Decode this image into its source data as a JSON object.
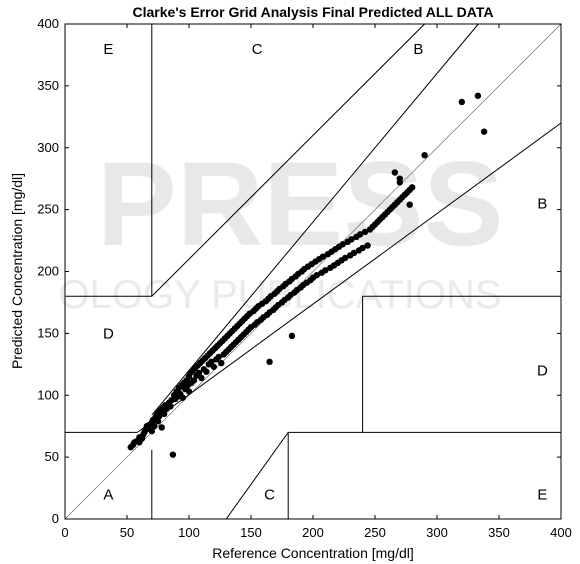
{
  "chart_data": {
    "type": "scatter",
    "title": "Clarke's Error Grid Analysis Final Predicted ALL DATA",
    "xlabel": "Reference Concentration [mg/dl]",
    "ylabel": "Predicted Concentration [mg/dl]",
    "xlim": [
      0,
      400
    ],
    "ylim": [
      0,
      400
    ],
    "xticks": [
      0,
      50,
      100,
      150,
      200,
      250,
      300,
      350,
      400
    ],
    "yticks": [
      0,
      50,
      100,
      150,
      200,
      250,
      300,
      350,
      400
    ],
    "grid": false,
    "zones": [
      {
        "label": "A",
        "x": 35,
        "y": 20
      },
      {
        "label": "B",
        "x": 285,
        "y": 380
      },
      {
        "label": "B",
        "x": 385,
        "y": 255
      },
      {
        "label": "C",
        "x": 155,
        "y": 380
      },
      {
        "label": "C",
        "x": 165,
        "y": 20
      },
      {
        "label": "D",
        "x": 35,
        "y": 150
      },
      {
        "label": "D",
        "x": 385,
        "y": 120
      },
      {
        "label": "E",
        "x": 35,
        "y": 380
      },
      {
        "label": "E",
        "x": 385,
        "y": 20
      }
    ],
    "boundaries": [
      [
        [
          0,
          0
        ],
        [
          400,
          400
        ]
      ],
      [
        [
          58.33,
          70
        ],
        [
          400,
          320
        ]
      ],
      [
        [
          70,
          84
        ],
        [
          333.33,
          400
        ]
      ],
      [
        [
          0,
          70
        ],
        [
          58.33,
          70
        ]
      ],
      [
        [
          70,
          56
        ],
        [
          70,
          0
        ]
      ],
      [
        [
          70,
          180
        ],
        [
          70,
          400
        ]
      ],
      [
        [
          0,
          180
        ],
        [
          70,
          180
        ]
      ],
      [
        [
          70,
          180
        ],
        [
          290,
          400
        ]
      ],
      [
        [
          130,
          0
        ],
        [
          180,
          70
        ]
      ],
      [
        [
          180,
          70
        ],
        [
          180,
          0
        ]
      ],
      [
        [
          180,
          70
        ],
        [
          400,
          70
        ]
      ],
      [
        [
          240,
          70
        ],
        [
          240,
          180
        ]
      ],
      [
        [
          240,
          180
        ],
        [
          400,
          180
        ]
      ]
    ],
    "series": [
      {
        "points": [
          [
            53,
            58
          ],
          [
            55,
            60
          ],
          [
            56,
            62
          ],
          [
            58,
            63
          ],
          [
            60,
            62
          ],
          [
            60,
            66
          ],
          [
            62,
            65
          ],
          [
            63,
            68
          ],
          [
            64,
            70
          ],
          [
            65,
            72
          ],
          [
            66,
            75
          ],
          [
            67,
            73
          ],
          [
            68,
            76
          ],
          [
            70,
            71
          ],
          [
            70,
            78
          ],
          [
            71,
            80
          ],
          [
            72,
            75
          ],
          [
            73,
            82
          ],
          [
            74,
            84
          ],
          [
            75,
            79
          ],
          [
            75,
            86
          ],
          [
            76,
            83
          ],
          [
            77,
            88
          ],
          [
            78,
            74
          ],
          [
            79,
            90
          ],
          [
            80,
            85
          ],
          [
            81,
            92
          ],
          [
            82,
            89
          ],
          [
            84,
            94
          ],
          [
            85,
            91
          ],
          [
            86,
            96
          ],
          [
            87,
            52
          ],
          [
            88,
            100
          ],
          [
            89,
            97
          ],
          [
            90,
            103
          ],
          [
            91,
            99
          ],
          [
            92,
            106
          ],
          [
            93,
            101
          ],
          [
            94,
            108
          ],
          [
            95,
            98
          ],
          [
            96,
            110
          ],
          [
            97,
            105
          ],
          [
            98,
            112
          ],
          [
            99,
            108
          ],
          [
            100,
            115
          ],
          [
            100,
            103
          ],
          [
            101,
            118
          ],
          [
            102,
            110
          ],
          [
            103,
            120
          ],
          [
            104,
            112
          ],
          [
            105,
            122
          ],
          [
            106,
            116
          ],
          [
            107,
            124
          ],
          [
            108,
            118
          ],
          [
            109,
            126
          ],
          [
            110,
            114
          ],
          [
            111,
            128
          ],
          [
            112,
            121
          ],
          [
            113,
            130
          ],
          [
            114,
            119
          ],
          [
            115,
            132
          ],
          [
            116,
            125
          ],
          [
            117,
            134
          ],
          [
            118,
            127
          ],
          [
            119,
            136
          ],
          [
            120,
            123
          ],
          [
            121,
            138
          ],
          [
            122,
            129
          ],
          [
            123,
            140
          ],
          [
            124,
            131
          ],
          [
            125,
            142
          ],
          [
            126,
            126
          ],
          [
            127,
            144
          ],
          [
            128,
            133
          ],
          [
            129,
            146
          ],
          [
            130,
            135
          ],
          [
            131,
            148
          ],
          [
            132,
            137
          ],
          [
            133,
            150
          ],
          [
            134,
            139
          ],
          [
            135,
            152
          ],
          [
            136,
            141
          ],
          [
            137,
            154
          ],
          [
            138,
            143
          ],
          [
            139,
            156
          ],
          [
            140,
            145
          ],
          [
            141,
            158
          ],
          [
            142,
            147
          ],
          [
            143,
            160
          ],
          [
            144,
            149
          ],
          [
            145,
            162
          ],
          [
            146,
            151
          ],
          [
            147,
            164
          ],
          [
            148,
            153
          ],
          [
            149,
            166
          ],
          [
            150,
            155
          ],
          [
            152,
            168
          ],
          [
            153,
            157
          ],
          [
            154,
            170
          ],
          [
            155,
            159
          ],
          [
            156,
            172
          ],
          [
            158,
            161
          ],
          [
            159,
            174
          ],
          [
            160,
            163
          ],
          [
            162,
            176
          ],
          [
            163,
            165
          ],
          [
            164,
            178
          ],
          [
            165,
            167
          ],
          [
            166,
            180
          ],
          [
            168,
            169
          ],
          [
            169,
            182
          ],
          [
            170,
            171
          ],
          [
            171,
            184
          ],
          [
            172,
            173
          ],
          [
            173,
            186
          ],
          [
            175,
            175
          ],
          [
            176,
            188
          ],
          [
            177,
            177
          ],
          [
            178,
            190
          ],
          [
            180,
            179
          ],
          [
            181,
            192
          ],
          [
            182,
            181
          ],
          [
            183,
            194
          ],
          [
            185,
            183
          ],
          [
            186,
            196
          ],
          [
            187,
            185
          ],
          [
            188,
            198
          ],
          [
            190,
            187
          ],
          [
            191,
            200
          ],
          [
            192,
            189
          ],
          [
            193,
            202
          ],
          [
            195,
            191
          ],
          [
            196,
            204
          ],
          [
            198,
            193
          ],
          [
            199,
            206
          ],
          [
            200,
            195
          ],
          [
            202,
            208
          ],
          [
            203,
            197
          ],
          [
            205,
            210
          ],
          [
            207,
            199
          ],
          [
            208,
            212
          ],
          [
            210,
            201
          ],
          [
            212,
            214
          ],
          [
            214,
            203
          ],
          [
            215,
            216
          ],
          [
            217,
            205
          ],
          [
            218,
            218
          ],
          [
            220,
            207
          ],
          [
            221,
            220
          ],
          [
            223,
            209
          ],
          [
            224,
            222
          ],
          [
            226,
            211
          ],
          [
            228,
            224
          ],
          [
            230,
            213
          ],
          [
            231,
            226
          ],
          [
            233,
            215
          ],
          [
            235,
            228
          ],
          [
            237,
            217
          ],
          [
            238,
            230
          ],
          [
            240,
            219
          ],
          [
            242,
            232
          ],
          [
            244,
            221
          ],
          [
            246,
            234
          ],
          [
            248,
            236
          ],
          [
            250,
            238
          ],
          [
            252,
            240
          ],
          [
            254,
            242
          ],
          [
            256,
            244
          ],
          [
            258,
            246
          ],
          [
            260,
            248
          ],
          [
            262,
            250
          ],
          [
            264,
            252
          ],
          [
            266,
            254
          ],
          [
            268,
            256
          ],
          [
            270,
            258
          ],
          [
            272,
            260
          ],
          [
            274,
            262
          ],
          [
            276,
            264
          ],
          [
            278,
            266
          ],
          [
            280,
            268
          ],
          [
            266,
            280
          ],
          [
            270,
            275
          ],
          [
            278,
            254
          ],
          [
            290,
            294
          ],
          [
            320,
            337
          ],
          [
            333,
            342
          ],
          [
            338,
            313
          ],
          [
            165,
            127
          ],
          [
            183,
            148
          ],
          [
            270,
            272
          ]
        ]
      }
    ]
  },
  "watermark": {
    "big": "PRESS",
    "sub": "OLOGY PUBLICATIONS"
  }
}
